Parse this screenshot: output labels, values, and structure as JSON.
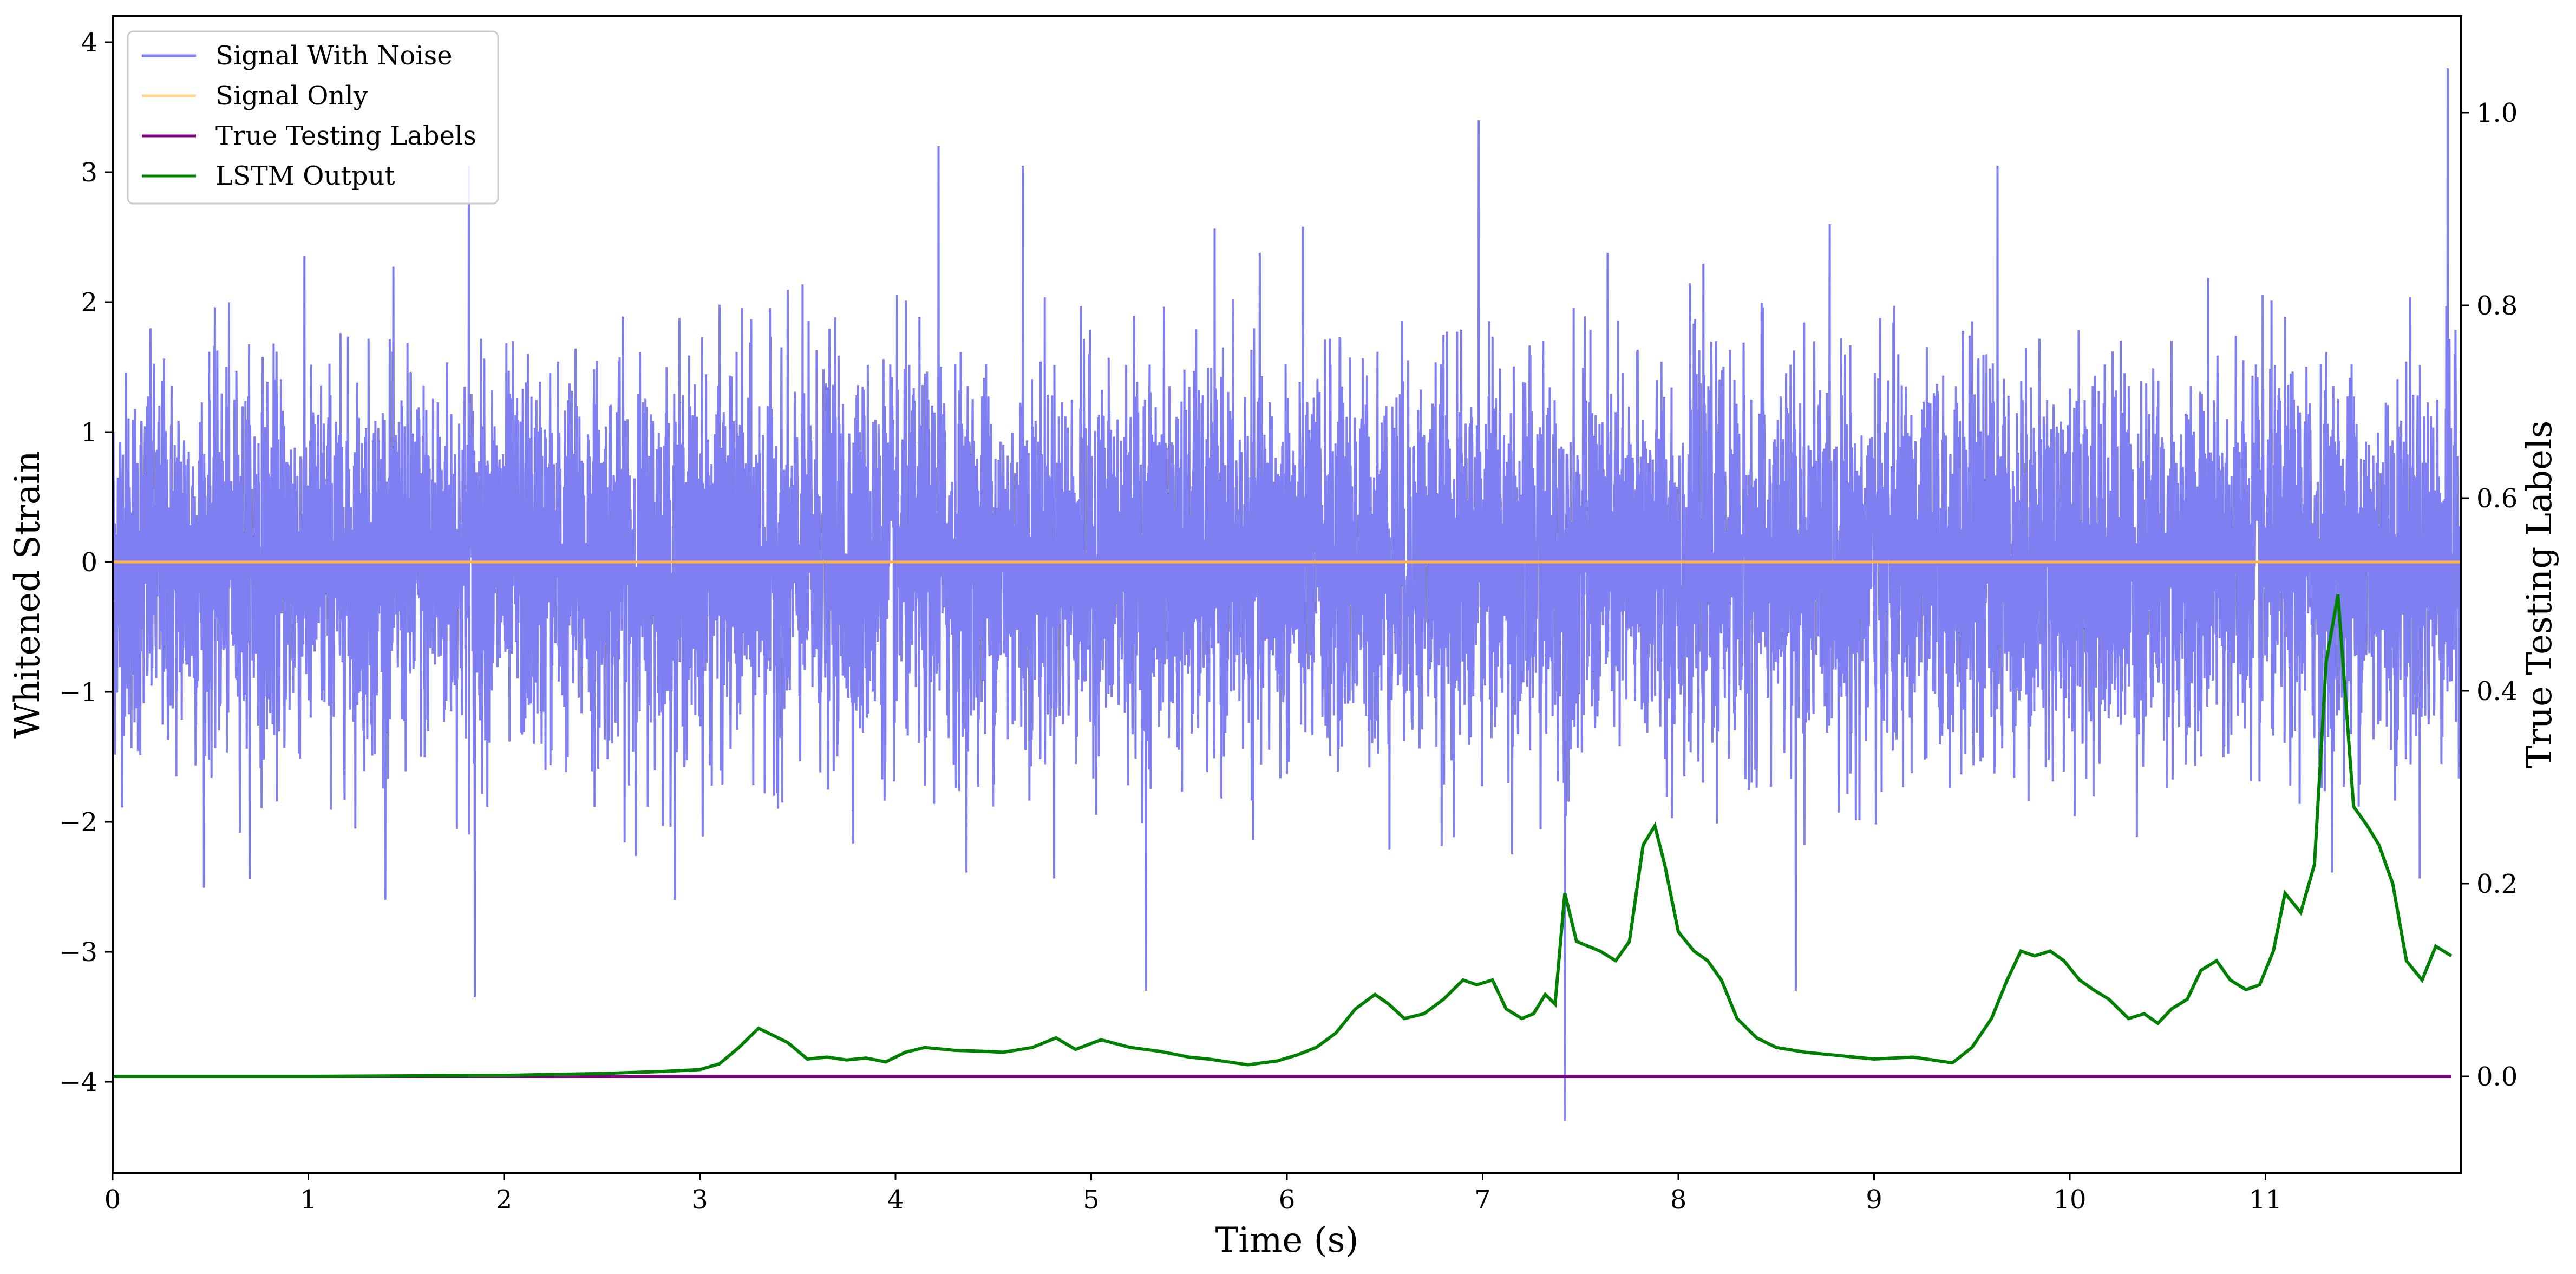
{
  "chart_data": {
    "type": "line",
    "xlabel": "Time (s)",
    "ylabel_left": "Whitened Strain",
    "ylabel_right": "True Testing Labels",
    "xlim": [
      0,
      12
    ],
    "ylim_left": [
      -4.7,
      4.2
    ],
    "ylim_right": [
      -0.1,
      1.1
    ],
    "x_ticks": [
      0,
      1,
      2,
      3,
      4,
      5,
      6,
      7,
      8,
      9,
      10,
      11
    ],
    "x_tick_labels": [
      "0",
      "1",
      "2",
      "3",
      "4",
      "5",
      "6",
      "7",
      "8",
      "9",
      "10",
      "11"
    ],
    "y_left_ticks": [
      -4,
      -3,
      -2,
      -1,
      0,
      1,
      2,
      3,
      4
    ],
    "y_left_tick_labels": [
      "−4",
      "−3",
      "−2",
      "−1",
      "0",
      "1",
      "2",
      "3",
      "4"
    ],
    "y_right_ticks": [
      0.0,
      0.2,
      0.4,
      0.6,
      0.8,
      1.0
    ],
    "y_right_tick_labels": [
      "0.0",
      "0.2",
      "0.4",
      "0.6",
      "0.8",
      "1.0"
    ],
    "grid": false,
    "legend_position": "top-left",
    "legend": [
      {
        "name": "Signal With Noise",
        "color": "#7f7ff2"
      },
      {
        "name": "Signal Only",
        "color": "#ffd488"
      },
      {
        "name": "True Testing Labels",
        "color": "#800080"
      },
      {
        "name": "LSTM Output",
        "color": "#008000"
      }
    ],
    "series": [
      {
        "name": "Signal With Noise",
        "axis": "left",
        "color": "#7f7ff2",
        "description_values": "dense noise, mostly within ±1.8, spikes to about ±3",
        "spikes": [
          {
            "x": 1.85,
            "y": -3.35
          },
          {
            "x": 1.82,
            "y": 3.05
          },
          {
            "x": 6.98,
            "y": 3.4
          },
          {
            "x": 7.42,
            "y": -4.3
          },
          {
            "x": 11.93,
            "y": 3.8
          },
          {
            "x": 8.6,
            "y": -3.3
          },
          {
            "x": 5.28,
            "y": -3.3
          },
          {
            "x": 4.22,
            "y": 3.2
          },
          {
            "x": 4.65,
            "y": 3.05
          },
          {
            "x": 9.63,
            "y": 3.05
          }
        ]
      },
      {
        "name": "Signal Only",
        "axis": "left",
        "color": "#ffb347",
        "x": [
          0,
          12
        ],
        "y": [
          0,
          0
        ]
      },
      {
        "name": "True Testing Labels",
        "axis": "right",
        "color": "#800080",
        "x": [
          0,
          11.95
        ],
        "y": [
          0,
          0
        ]
      },
      {
        "name": "LSTM Output",
        "axis": "right",
        "color": "#008000",
        "x": [
          0,
          1.0,
          2.0,
          2.5,
          2.8,
          3.0,
          3.1,
          3.2,
          3.3,
          3.45,
          3.55,
          3.65,
          3.75,
          3.85,
          3.95,
          4.05,
          4.15,
          4.3,
          4.45,
          4.55,
          4.7,
          4.82,
          4.92,
          5.05,
          5.2,
          5.35,
          5.5,
          5.6,
          5.8,
          5.95,
          6.05,
          6.15,
          6.25,
          6.35,
          6.45,
          6.52,
          6.6,
          6.7,
          6.8,
          6.9,
          6.97,
          7.05,
          7.12,
          7.2,
          7.26,
          7.32,
          7.37,
          7.42,
          7.48,
          7.6,
          7.68,
          7.75,
          7.82,
          7.88,
          7.93,
          8.0,
          8.08,
          8.15,
          8.22,
          8.3,
          8.4,
          8.5,
          8.65,
          8.8,
          9.0,
          9.2,
          9.4,
          9.5,
          9.6,
          9.68,
          9.75,
          9.82,
          9.9,
          9.97,
          10.05,
          10.12,
          10.2,
          10.3,
          10.38,
          10.45,
          10.52,
          10.6,
          10.67,
          10.75,
          10.82,
          10.9,
          10.97,
          11.04,
          11.1,
          11.18,
          11.25,
          11.31,
          11.37,
          11.45,
          11.52,
          11.58,
          11.65,
          11.72,
          11.8,
          11.87,
          11.95
        ],
        "y": [
          0.0,
          0.0,
          0.001,
          0.003,
          0.005,
          0.007,
          0.013,
          0.03,
          0.05,
          0.035,
          0.018,
          0.02,
          0.017,
          0.019,
          0.015,
          0.025,
          0.03,
          0.027,
          0.026,
          0.025,
          0.03,
          0.04,
          0.028,
          0.038,
          0.03,
          0.026,
          0.02,
          0.018,
          0.012,
          0.016,
          0.022,
          0.03,
          0.045,
          0.07,
          0.085,
          0.075,
          0.06,
          0.065,
          0.08,
          0.1,
          0.095,
          0.1,
          0.07,
          0.06,
          0.065,
          0.085,
          0.075,
          0.19,
          0.14,
          0.13,
          0.12,
          0.14,
          0.24,
          0.26,
          0.22,
          0.15,
          0.13,
          0.12,
          0.1,
          0.06,
          0.04,
          0.03,
          0.025,
          0.022,
          0.018,
          0.02,
          0.014,
          0.03,
          0.06,
          0.1,
          0.13,
          0.125,
          0.13,
          0.12,
          0.1,
          0.09,
          0.08,
          0.06,
          0.065,
          0.055,
          0.07,
          0.08,
          0.11,
          0.12,
          0.1,
          0.09,
          0.095,
          0.13,
          0.19,
          0.17,
          0.22,
          0.43,
          0.5,
          0.28,
          0.26,
          0.24,
          0.2,
          0.12,
          0.1,
          0.135,
          0.125
        ]
      }
    ]
  }
}
